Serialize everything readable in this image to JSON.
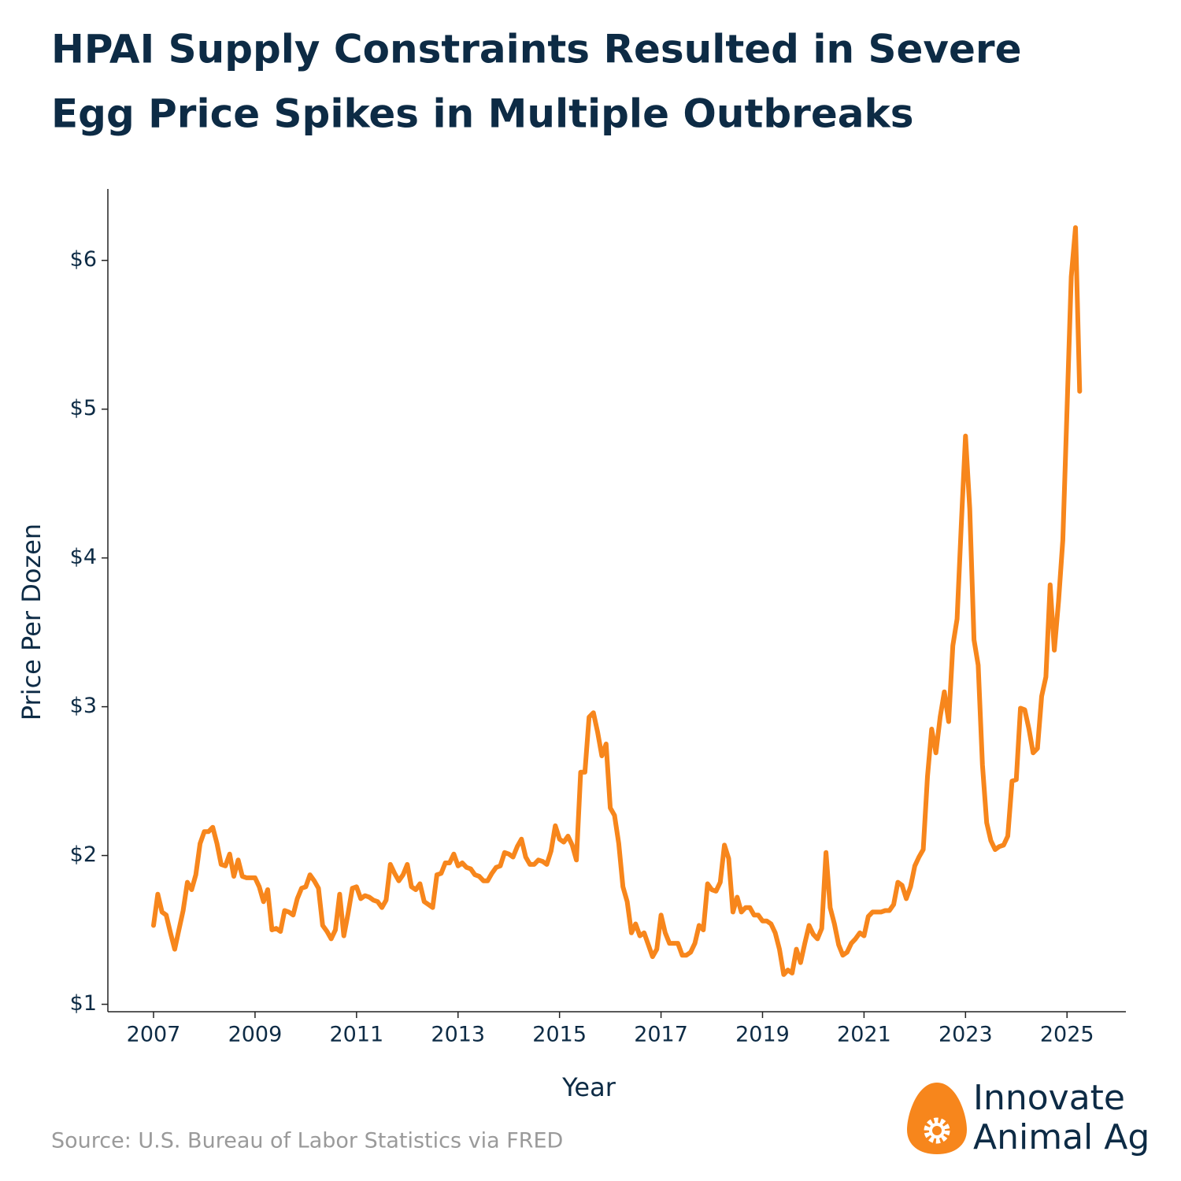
{
  "chart_data": {
    "type": "line",
    "title": [
      "HPAI Supply Constraints Resulted in Severe",
      "Egg Price Spikes in Multiple Outbreaks"
    ],
    "xlabel": "Year",
    "ylabel": "Price Per Dozen",
    "source": "Source: U.S. Bureau of Labor Statistics via FRED",
    "logo": [
      "Innovate",
      "Animal Ag"
    ],
    "xlim": [
      2006.1,
      2026.16
    ],
    "ylim": [
      0.95,
      6.48
    ],
    "xticks": [
      2007,
      2009,
      2011,
      2013,
      2015,
      2017,
      2019,
      2021,
      2023,
      2025
    ],
    "yticks": [
      {
        "value": 1,
        "label": "$1"
      },
      {
        "value": 2,
        "label": "$2"
      },
      {
        "value": 3,
        "label": "$3"
      },
      {
        "value": 4,
        "label": "$4"
      },
      {
        "value": 5,
        "label": "$5"
      },
      {
        "value": 6,
        "label": "$6"
      }
    ],
    "series": [
      {
        "color": "#f7861c",
        "x": [
          2007,
          2007.083,
          2007.167,
          2007.25,
          2007.333,
          2007.417,
          2007.5,
          2007.583,
          2007.667,
          2007.75,
          2007.833,
          2007.917,
          2008,
          2008.083,
          2008.167,
          2008.25,
          2008.333,
          2008.417,
          2008.5,
          2008.583,
          2008.667,
          2008.75,
          2008.833,
          2008.917,
          2009,
          2009.083,
          2009.167,
          2009.25,
          2009.333,
          2009.417,
          2009.5,
          2009.583,
          2009.667,
          2009.75,
          2009.833,
          2009.917,
          2010,
          2010.083,
          2010.167,
          2010.25,
          2010.333,
          2010.417,
          2010.5,
          2010.583,
          2010.667,
          2010.75,
          2010.833,
          2010.917,
          2011,
          2011.083,
          2011.167,
          2011.25,
          2011.333,
          2011.417,
          2011.5,
          2011.583,
          2011.667,
          2011.75,
          2011.833,
          2011.917,
          2012,
          2012.083,
          2012.167,
          2012.25,
          2012.333,
          2012.417,
          2012.5,
          2012.583,
          2012.667,
          2012.75,
          2012.833,
          2012.917,
          2013,
          2013.083,
          2013.167,
          2013.25,
          2013.333,
          2013.417,
          2013.5,
          2013.583,
          2013.667,
          2013.75,
          2013.833,
          2013.917,
          2014,
          2014.083,
          2014.167,
          2014.25,
          2014.333,
          2014.417,
          2014.5,
          2014.583,
          2014.667,
          2014.75,
          2014.833,
          2014.917,
          2015,
          2015.083,
          2015.167,
          2015.25,
          2015.333,
          2015.417,
          2015.5,
          2015.583,
          2015.667,
          2015.75,
          2015.833,
          2015.917,
          2016,
          2016.083,
          2016.167,
          2016.25,
          2016.333,
          2016.417,
          2016.5,
          2016.583,
          2016.667,
          2016.75,
          2016.833,
          2016.917,
          2017,
          2017.083,
          2017.167,
          2017.25,
          2017.333,
          2017.417,
          2017.5,
          2017.583,
          2017.667,
          2017.75,
          2017.833,
          2017.917,
          2018,
          2018.083,
          2018.167,
          2018.25,
          2018.333,
          2018.417,
          2018.5,
          2018.583,
          2018.667,
          2018.75,
          2018.833,
          2018.917,
          2019,
          2019.083,
          2019.167,
          2019.25,
          2019.333,
          2019.417,
          2019.5,
          2019.583,
          2019.667,
          2019.75,
          2019.833,
          2019.917,
          2020,
          2020.083,
          2020.167,
          2020.25,
          2020.333,
          2020.417,
          2020.5,
          2020.583,
          2020.667,
          2020.75,
          2020.833,
          2020.917,
          2021,
          2021.083,
          2021.167,
          2021.25,
          2021.333,
          2021.417,
          2021.5,
          2021.583,
          2021.667,
          2021.75,
          2021.833,
          2021.917,
          2022,
          2022.083,
          2022.167,
          2022.25,
          2022.333,
          2022.417,
          2022.5,
          2022.583,
          2022.667,
          2022.75,
          2022.833,
          2022.917,
          2023,
          2023.083,
          2023.167,
          2023.25,
          2023.333,
          2023.417,
          2023.5,
          2023.583,
          2023.667,
          2023.75,
          2023.833,
          2023.917,
          2024,
          2024.083,
          2024.167,
          2024.25,
          2024.333,
          2024.417,
          2024.5,
          2024.583,
          2024.667,
          2024.75,
          2024.833,
          2024.917,
          2025,
          2025.083,
          2025.167,
          2025.25
        ],
        "values": [
          1.53,
          1.74,
          1.62,
          1.6,
          1.48,
          1.37,
          1.5,
          1.63,
          1.82,
          1.77,
          1.87,
          2.08,
          2.16,
          2.16,
          2.19,
          2.08,
          1.94,
          1.93,
          2.01,
          1.86,
          1.97,
          1.86,
          1.85,
          1.85,
          1.85,
          1.79,
          1.69,
          1.77,
          1.5,
          1.51,
          1.49,
          1.63,
          1.62,
          1.6,
          1.71,
          1.78,
          1.79,
          1.87,
          1.83,
          1.78,
          1.53,
          1.49,
          1.44,
          1.5,
          1.74,
          1.46,
          1.61,
          1.78,
          1.79,
          1.71,
          1.73,
          1.72,
          1.7,
          1.69,
          1.65,
          1.7,
          1.94,
          1.88,
          1.83,
          1.87,
          1.94,
          1.79,
          1.77,
          1.81,
          1.69,
          1.67,
          1.65,
          1.87,
          1.88,
          1.95,
          1.95,
          2.01,
          1.93,
          1.95,
          1.92,
          1.91,
          1.87,
          1.86,
          1.83,
          1.83,
          1.88,
          1.92,
          1.93,
          2.02,
          2.01,
          1.99,
          2.06,
          2.11,
          1.99,
          1.94,
          1.94,
          1.97,
          1.96,
          1.94,
          2.03,
          2.2,
          2.11,
          2.09,
          2.13,
          2.07,
          1.97,
          2.56,
          2.56,
          2.93,
          2.96,
          2.83,
          2.67,
          2.75,
          2.32,
          2.27,
          2.08,
          1.79,
          1.69,
          1.48,
          1.54,
          1.46,
          1.48,
          1.4,
          1.32,
          1.37,
          1.6,
          1.48,
          1.41,
          1.41,
          1.41,
          1.33,
          1.33,
          1.35,
          1.41,
          1.53,
          1.5,
          1.81,
          1.77,
          1.76,
          1.82,
          2.07,
          1.98,
          1.62,
          1.72,
          1.62,
          1.65,
          1.65,
          1.6,
          1.6,
          1.56,
          1.56,
          1.54,
          1.48,
          1.37,
          1.2,
          1.23,
          1.21,
          1.37,
          1.28,
          1.41,
          1.53,
          1.47,
          1.44,
          1.51,
          2.02,
          1.65,
          1.54,
          1.4,
          1.33,
          1.35,
          1.41,
          1.44,
          1.48,
          1.46,
          1.59,
          1.62,
          1.62,
          1.62,
          1.63,
          1.63,
          1.67,
          1.82,
          1.8,
          1.71,
          1.79,
          1.93,
          1.99,
          2.04,
          2.53,
          2.85,
          2.69,
          2.93,
          3.1,
          2.9,
          3.41,
          3.59,
          4.23,
          4.82,
          4.33,
          3.45,
          3.28,
          2.61,
          2.22,
          2.1,
          2.04,
          2.06,
          2.07,
          2.13,
          2.5,
          2.51,
          2.99,
          2.98,
          2.85,
          2.69,
          2.72,
          3.07,
          3.2,
          3.82,
          3.38,
          3.71,
          4.12,
          4.99,
          5.89,
          6.22,
          5.12
        ]
      }
    ]
  }
}
